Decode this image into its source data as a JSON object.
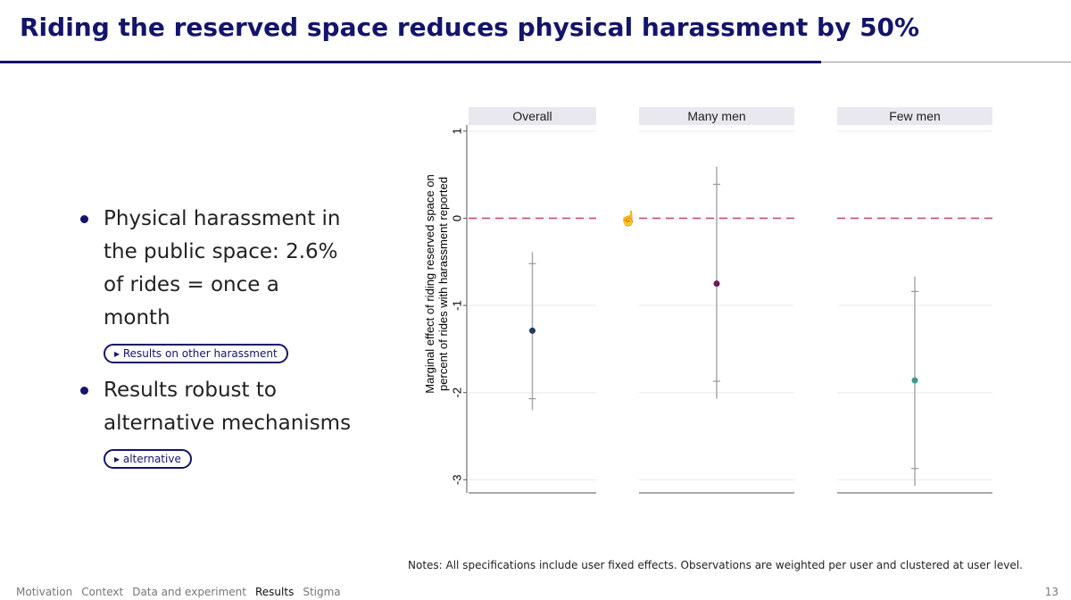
{
  "header": {
    "title": "Riding the reserved space reduces physical harassment by 50%"
  },
  "bullets": [
    {
      "lines": [
        "Physical harassment in",
        "the public space: 2.6%",
        "of rides = once a",
        "month"
      ],
      "button": "Results on other harassment"
    },
    {
      "lines": [
        "Results robust to",
        "alternative mechanisms"
      ],
      "button": "alternative"
    }
  ],
  "chart_data": {
    "type": "errorbar",
    "ylabel": [
      "Marginal effect of riding reserved space on",
      "percent of rides with harassment reported"
    ],
    "ylim": [
      -3.15,
      1.07
    ],
    "yticks": [
      1,
      0,
      -1,
      -2,
      -3
    ],
    "grid": true,
    "refline": 0,
    "refline_color": "#c8506e",
    "panels": [
      {
        "name": "Overall",
        "color": "#1f3b5e",
        "estimate": -1.29,
        "ci90": [
          -0.52,
          -2.07
        ],
        "ci95": [
          -0.39,
          -2.2
        ]
      },
      {
        "name": "Many men",
        "color": "#6b1a5a",
        "estimate": -0.75,
        "ci90": [
          0.39,
          -1.87
        ],
        "ci95": [
          0.59,
          -2.07
        ]
      },
      {
        "name": "Few men",
        "color": "#3a9a8a",
        "estimate": -1.86,
        "ci90": [
          -0.84,
          -2.87
        ],
        "ci95": [
          -0.67,
          -3.07
        ]
      }
    ]
  },
  "notes": "Notes: All specifications include user fixed effects. Observations are weighted per user and clustered at user level.",
  "nav": {
    "items": [
      "Motivation",
      "Context",
      "Data and experiment",
      "Results",
      "Stigma"
    ],
    "current": 3
  },
  "page_number": "13"
}
